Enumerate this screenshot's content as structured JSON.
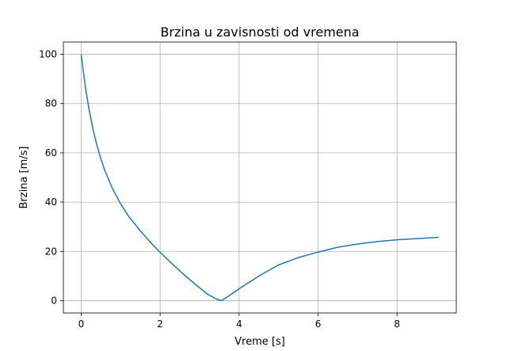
{
  "chart_data": {
    "type": "line",
    "title": "Brzina u zavisnosti od vremena",
    "xlabel": "Vreme [s]",
    "ylabel": "Brzina [m/s]",
    "xlim": [
      -0.45,
      9.5
    ],
    "ylim": [
      -5,
      105
    ],
    "xticks": [
      0,
      2,
      4,
      6,
      8
    ],
    "yticks": [
      0,
      20,
      40,
      60,
      80,
      100
    ],
    "grid": true,
    "colors": {
      "line": "#1f77b4",
      "grid": "#b0b0b0",
      "axes": "#000000"
    },
    "series": [
      {
        "x": [
          0,
          0.1,
          0.2,
          0.3,
          0.4,
          0.5,
          0.6,
          0.8,
          1.0,
          1.2,
          1.5,
          1.8,
          2.0,
          2.3,
          2.6,
          2.9,
          3.2,
          3.45,
          3.55,
          3.7,
          4.0,
          4.5,
          5.0,
          5.5,
          6.0,
          6.5,
          7.0,
          7.5,
          8.0,
          8.5,
          9.05
        ],
        "y": [
          100,
          87.5,
          77.6,
          69.6,
          63.0,
          57.5,
          52.8,
          45.3,
          39.3,
          34.3,
          28.3,
          22.9,
          19.6,
          15.0,
          10.6,
          6.5,
          2.6,
          0.5,
          0.0,
          1.5,
          4.8,
          10.0,
          14.5,
          17.5,
          19.7,
          21.7,
          23.0,
          24.0,
          24.7,
          25.2,
          25.7
        ]
      }
    ]
  }
}
